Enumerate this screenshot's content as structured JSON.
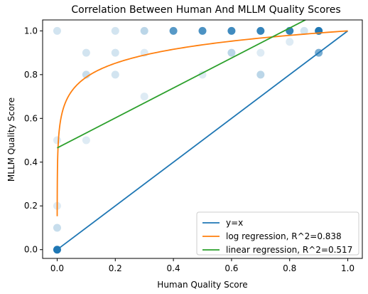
{
  "chart_data": {
    "type": "scatter",
    "title": "Correlation Between Human And MLLM Quality Scores",
    "xlabel": "Human Quality Score",
    "ylabel": "MLLM Quality Score",
    "xlim": [
      -0.05,
      1.05
    ],
    "ylim": [
      -0.04,
      1.05
    ],
    "x_ticks": [
      0.0,
      0.2,
      0.4,
      0.6,
      0.8,
      1.0
    ],
    "y_ticks": [
      0.0,
      0.2,
      0.4,
      0.6,
      0.8,
      1.0
    ],
    "x_tick_labels": [
      "0.0",
      "0.2",
      "0.4",
      "0.6",
      "0.8",
      "1.0"
    ],
    "y_tick_labels": [
      "0.0",
      "0.2",
      "0.4",
      "0.6",
      "0.8",
      "1.0"
    ],
    "grid": false,
    "legend_position": "lower right",
    "points": [
      {
        "x": 0.0,
        "y": 1.0,
        "alpha": 0.2
      },
      {
        "x": 0.0,
        "y": 0.5,
        "alpha": 0.15
      },
      {
        "x": 0.0,
        "y": 0.2,
        "alpha": 0.15
      },
      {
        "x": 0.0,
        "y": 0.1,
        "alpha": 0.25
      },
      {
        "x": 0.0,
        "y": 0.0,
        "alpha": 1.0
      },
      {
        "x": 0.1,
        "y": 0.9,
        "alpha": 0.2
      },
      {
        "x": 0.1,
        "y": 0.8,
        "alpha": 0.25
      },
      {
        "x": 0.1,
        "y": 0.5,
        "alpha": 0.15
      },
      {
        "x": 0.2,
        "y": 1.0,
        "alpha": 0.2
      },
      {
        "x": 0.2,
        "y": 0.9,
        "alpha": 0.2
      },
      {
        "x": 0.2,
        "y": 0.8,
        "alpha": 0.2
      },
      {
        "x": 0.3,
        "y": 1.0,
        "alpha": 0.3
      },
      {
        "x": 0.3,
        "y": 0.9,
        "alpha": 0.15
      },
      {
        "x": 0.3,
        "y": 0.7,
        "alpha": 0.15
      },
      {
        "x": 0.4,
        "y": 1.0,
        "alpha": 0.75
      },
      {
        "x": 0.5,
        "y": 1.0,
        "alpha": 0.8
      },
      {
        "x": 0.5,
        "y": 0.8,
        "alpha": 0.15
      },
      {
        "x": 0.6,
        "y": 1.0,
        "alpha": 0.85
      },
      {
        "x": 0.6,
        "y": 0.9,
        "alpha": 0.3
      },
      {
        "x": 0.7,
        "y": 1.0,
        "alpha": 0.9
      },
      {
        "x": 0.7,
        "y": 0.9,
        "alpha": 0.15
      },
      {
        "x": 0.7,
        "y": 0.8,
        "alpha": 0.3
      },
      {
        "x": 0.8,
        "y": 1.0,
        "alpha": 0.9
      },
      {
        "x": 0.8,
        "y": 0.95,
        "alpha": 0.15
      },
      {
        "x": 0.85,
        "y": 1.0,
        "alpha": 0.2
      },
      {
        "x": 0.9,
        "y": 1.0,
        "alpha": 1.0
      },
      {
        "x": 0.9,
        "y": 0.9,
        "alpha": 0.6
      }
    ],
    "series": [
      {
        "name": "y=x",
        "color": "#1f77b4",
        "kind": "identity"
      },
      {
        "name": "log regression, R^2=0.838",
        "color": "#ff7f0e",
        "kind": "log",
        "intercept": 1.0,
        "slope": 0.092,
        "x_start": 0.0001,
        "x_end": 1.0
      },
      {
        "name": "linear regression, R^2=0.517",
        "color": "#2ca02c",
        "kind": "linear",
        "intercept": 0.465,
        "slope": 0.685,
        "x_start": 0.0,
        "x_end": 1.0
      }
    ],
    "point_color": "#1f77b4"
  }
}
